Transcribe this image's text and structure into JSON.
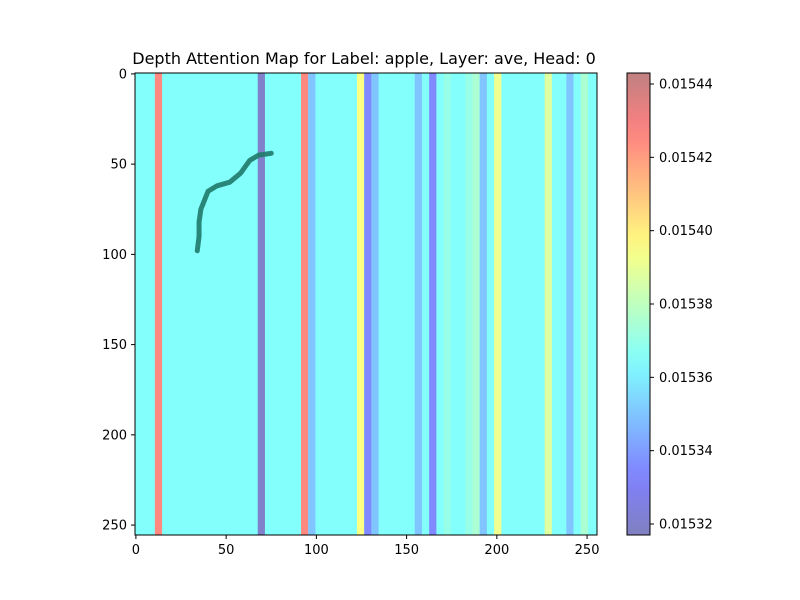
{
  "chart_data": {
    "type": "heatmap",
    "title": "Depth Attention Map for Label: apple, Layer: ave, Head: 0",
    "xlabel": "",
    "ylabel": "",
    "xlim": [
      0,
      255
    ],
    "ylim": [
      255,
      0
    ],
    "x_ticks": [
      "0",
      "50",
      "100",
      "150",
      "200",
      "250"
    ],
    "y_ticks": [
      "0",
      "50",
      "100",
      "150",
      "200",
      "250"
    ],
    "colorbar": {
      "colormap": "jet",
      "alpha": 0.5,
      "range": [
        0.015317,
        0.015443
      ],
      "ticks": [
        "0.01532",
        "0.01534",
        "0.01536",
        "0.01538",
        "0.01540",
        "0.01542",
        "0.01544"
      ]
    },
    "background_value": 0.015365,
    "column_bands": [
      {
        "x": [
          11,
          15
        ],
        "value": 0.015425
      },
      {
        "x": [
          68,
          72
        ],
        "value": 0.01532
      },
      {
        "x": [
          92,
          96
        ],
        "value": 0.015425
      },
      {
        "x": [
          96,
          100
        ],
        "value": 0.01535
      },
      {
        "x": [
          123,
          127
        ],
        "value": 0.015395
      },
      {
        "x": [
          127,
          131
        ],
        "value": 0.015335
      },
      {
        "x": [
          131,
          135
        ],
        "value": 0.01535
      },
      {
        "x": [
          155,
          159
        ],
        "value": 0.01535
      },
      {
        "x": [
          163,
          167
        ],
        "value": 0.015335
      },
      {
        "x": [
          171,
          175
        ],
        "value": 0.01537
      },
      {
        "x": [
          183,
          187
        ],
        "value": 0.01537
      },
      {
        "x": [
          187,
          191
        ],
        "value": 0.015375
      },
      {
        "x": [
          191,
          195
        ],
        "value": 0.01535
      },
      {
        "x": [
          199,
          203
        ],
        "value": 0.015392
      },
      {
        "x": [
          227,
          231
        ],
        "value": 0.015388
      },
      {
        "x": [
          239,
          243
        ],
        "value": 0.01535
      },
      {
        "x": [
          247,
          251
        ],
        "value": 0.015375
      }
    ],
    "overlay_path": [
      [
        75,
        44
      ],
      [
        68,
        45
      ],
      [
        63,
        48
      ],
      [
        58,
        55
      ],
      [
        52,
        60
      ],
      [
        45,
        62
      ],
      [
        40,
        65
      ],
      [
        38,
        70
      ],
      [
        36,
        75
      ],
      [
        35,
        82
      ],
      [
        35,
        90
      ],
      [
        34,
        98
      ]
    ],
    "overlay_color": "#1f7a6a"
  }
}
